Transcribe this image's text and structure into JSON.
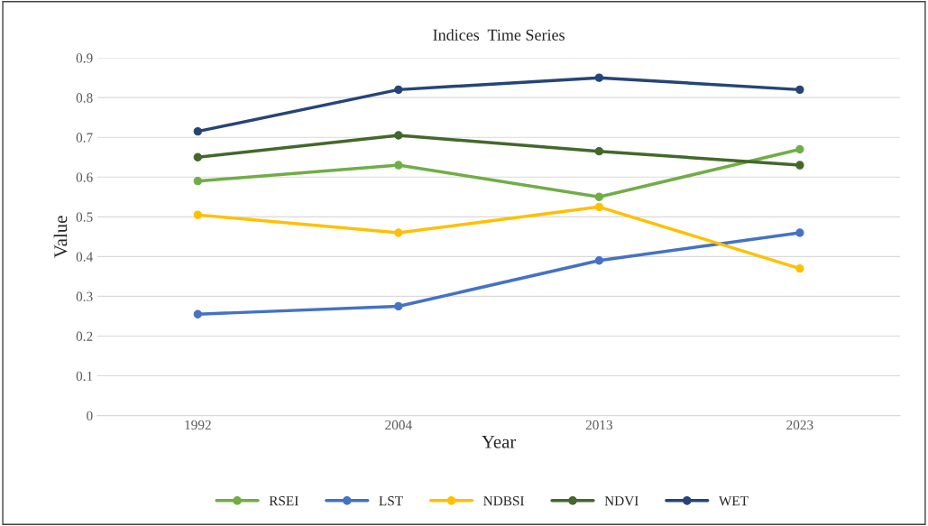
{
  "chart_data": {
    "type": "line",
    "title": "Indices  Time Series",
    "xlabel": "Year",
    "ylabel": "Value",
    "categories": [
      "1992",
      "2004",
      "2013",
      "2023"
    ],
    "series": [
      {
        "name": "RSEI",
        "color": "#70ad47",
        "values": [
          0.59,
          0.63,
          0.55,
          0.67
        ]
      },
      {
        "name": "LST",
        "color": "#4472c4",
        "values": [
          0.255,
          0.275,
          0.39,
          0.46
        ]
      },
      {
        "name": "NDBSI",
        "color": "#ffc000",
        "values": [
          0.505,
          0.46,
          0.525,
          0.37
        ]
      },
      {
        "name": "NDVI",
        "color": "#43682b",
        "values": [
          0.65,
          0.705,
          0.665,
          0.63
        ]
      },
      {
        "name": "WET",
        "color": "#264478",
        "values": [
          0.715,
          0.82,
          0.85,
          0.82
        ]
      }
    ],
    "ylim": [
      0,
      0.9
    ],
    "yticks": [
      0,
      0.1,
      0.2,
      0.3,
      0.4,
      0.5,
      0.6,
      0.7,
      0.8,
      0.9
    ],
    "grid": "y",
    "legend": "bottom",
    "marker": "circle",
    "line_style": "solid"
  }
}
